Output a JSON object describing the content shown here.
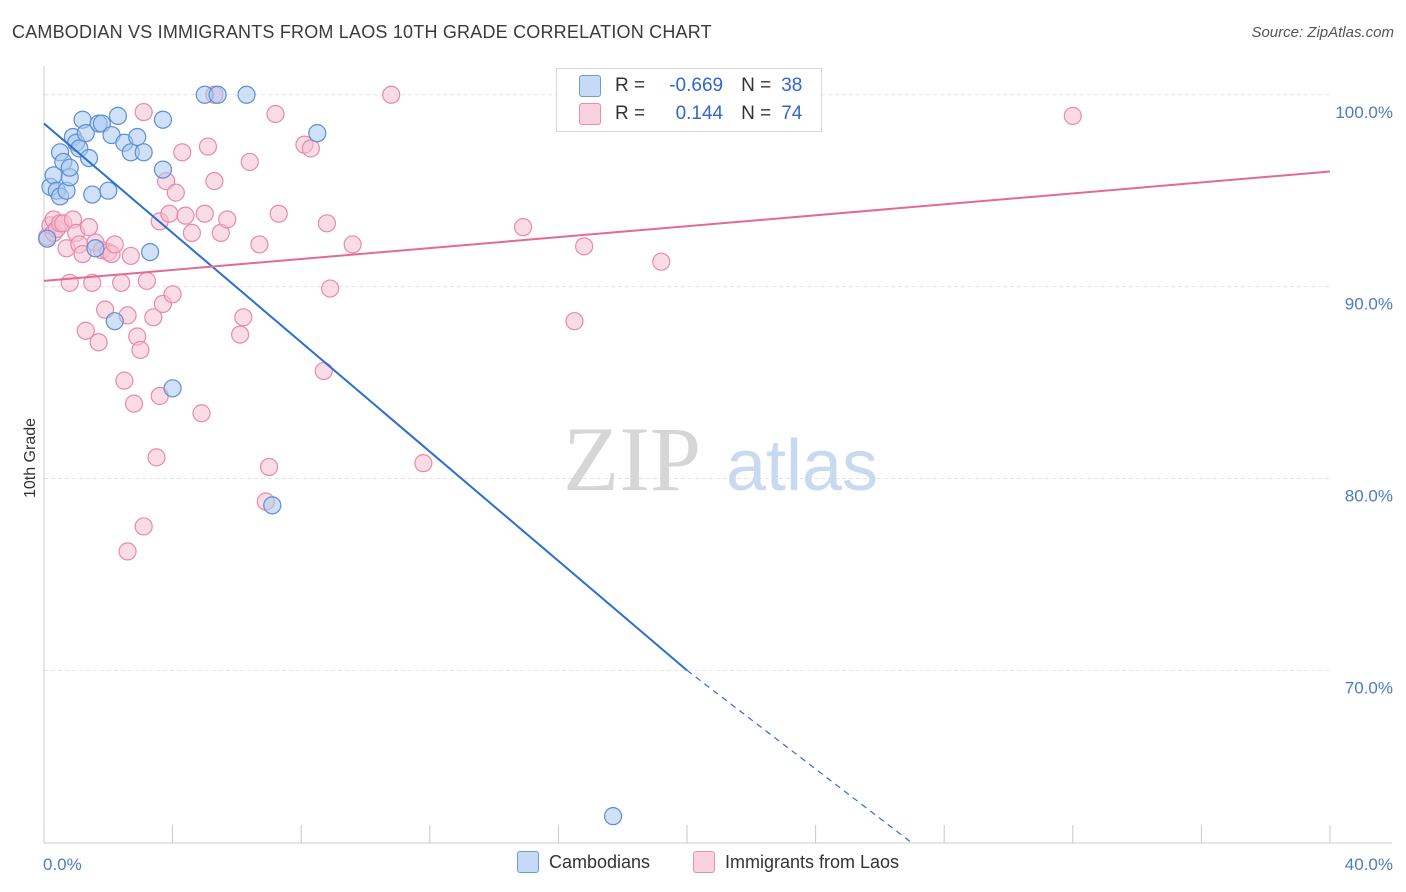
{
  "title": "CAMBODIAN VS IMMIGRANTS FROM LAOS 10TH GRADE CORRELATION CHART",
  "source": "Source: ZipAtlas.com",
  "watermark": {
    "zip": "ZIP",
    "atlas": "atlas"
  },
  "legend": {
    "rows": [
      {
        "r_label": "R =",
        "r_value": "-0.669",
        "n_label": "N =",
        "n_value": "38"
      },
      {
        "r_label": "R =",
        "r_value": "0.144",
        "n_label": "N =",
        "n_value": "74"
      }
    ]
  },
  "bottom_legend": {
    "a": "Cambodians",
    "b": "Immigrants from Laos"
  },
  "colors": {
    "blue_fill": "#aac8f0",
    "blue_stroke": "#5b8fd6",
    "blue_line": "#2a6fd1",
    "pink_fill": "#f6c0d2",
    "pink_stroke": "#e88aaa",
    "pink_line": "#e36a93",
    "grid": "#e2e2e2",
    "tick_text": "#4a7cc9"
  },
  "chart_data": {
    "type": "scatter",
    "title": "CAMBODIAN VS IMMIGRANTS FROM LAOS 10TH GRADE CORRELATION CHART",
    "xlabel": "",
    "ylabel": "10th Grade",
    "xlim": [
      0,
      40
    ],
    "ylim": [
      61.0,
      101.5
    ],
    "x_tick_labels": [
      {
        "value": 0,
        "label": "0.0%"
      },
      {
        "value": 40,
        "label": "40.0%"
      }
    ],
    "x_minor_ticks": [
      0,
      4,
      8,
      12,
      16,
      20,
      24,
      28,
      32,
      36,
      40
    ],
    "y_tick_labels": [
      {
        "value": 100,
        "label": "100.0%"
      },
      {
        "value": 90,
        "label": "90.0%"
      },
      {
        "value": 80,
        "label": "80.0%"
      },
      {
        "value": 70,
        "label": "70.0%"
      }
    ],
    "gridlines_y": [
      100,
      90,
      80,
      70
    ],
    "series": [
      {
        "name": "Cambodians",
        "R": -0.669,
        "N": 38,
        "trend": {
          "x0": 0,
          "y0": 98.5,
          "x1": 20,
          "y1": 70.0,
          "dash_to_x": 27,
          "dash_to_y": 61.0
        },
        "points": [
          [
            0.2,
            95.2
          ],
          [
            0.3,
            95.8
          ],
          [
            0.4,
            95.0
          ],
          [
            0.5,
            94.7
          ],
          [
            0.5,
            97.0
          ],
          [
            0.6,
            96.5
          ],
          [
            0.7,
            95.0
          ],
          [
            0.8,
            95.7
          ],
          [
            0.8,
            96.2
          ],
          [
            0.9,
            97.8
          ],
          [
            1.0,
            97.5
          ],
          [
            1.1,
            97.2
          ],
          [
            1.2,
            98.7
          ],
          [
            1.3,
            98.0
          ],
          [
            1.4,
            96.7
          ],
          [
            1.5,
            94.8
          ],
          [
            1.6,
            92.0
          ],
          [
            1.7,
            98.5
          ],
          [
            1.8,
            98.5
          ],
          [
            2.0,
            95.0
          ],
          [
            2.1,
            97.9
          ],
          [
            2.3,
            98.9
          ],
          [
            2.2,
            88.2
          ],
          [
            2.5,
            97.5
          ],
          [
            2.7,
            97.0
          ],
          [
            2.9,
            97.8
          ],
          [
            3.1,
            97.0
          ],
          [
            3.3,
            91.8
          ],
          [
            3.7,
            96.1
          ],
          [
            3.7,
            98.7
          ],
          [
            4.0,
            84.7
          ],
          [
            5.0,
            100.0
          ],
          [
            5.4,
            100.0
          ],
          [
            6.3,
            100.0
          ],
          [
            7.1,
            78.6
          ],
          [
            8.5,
            98.0
          ],
          [
            17.7,
            62.4
          ],
          [
            0.1,
            92.5
          ]
        ]
      },
      {
        "name": "Immigrants from Laos",
        "R": 0.144,
        "N": 74,
        "trend": {
          "x0": 0,
          "y0": 90.3,
          "x1": 40,
          "y1": 96.0
        },
        "points": [
          [
            0.1,
            92.6
          ],
          [
            0.2,
            93.2
          ],
          [
            0.3,
            93.5
          ],
          [
            0.3,
            92.8
          ],
          [
            0.4,
            93.0
          ],
          [
            0.5,
            93.3
          ],
          [
            0.6,
            93.3
          ],
          [
            0.7,
            92.0
          ],
          [
            0.8,
            90.2
          ],
          [
            0.9,
            93.5
          ],
          [
            1.0,
            92.8
          ],
          [
            1.1,
            92.2
          ],
          [
            1.2,
            91.7
          ],
          [
            1.3,
            87.7
          ],
          [
            1.4,
            93.1
          ],
          [
            1.5,
            90.2
          ],
          [
            1.6,
            92.3
          ],
          [
            1.7,
            87.1
          ],
          [
            1.8,
            91.9
          ],
          [
            1.9,
            88.8
          ],
          [
            2.0,
            91.8
          ],
          [
            2.1,
            91.7
          ],
          [
            2.2,
            92.2
          ],
          [
            2.4,
            90.2
          ],
          [
            2.5,
            85.1
          ],
          [
            2.6,
            88.5
          ],
          [
            2.7,
            91.6
          ],
          [
            2.8,
            83.9
          ],
          [
            2.9,
            87.4
          ],
          [
            3.0,
            86.7
          ],
          [
            3.1,
            77.5
          ],
          [
            3.2,
            90.3
          ],
          [
            3.4,
            88.4
          ],
          [
            3.5,
            81.1
          ],
          [
            3.6,
            84.3
          ],
          [
            3.6,
            93.4
          ],
          [
            3.7,
            89.1
          ],
          [
            3.8,
            95.5
          ],
          [
            3.9,
            93.8
          ],
          [
            4.0,
            89.6
          ],
          [
            4.1,
            94.9
          ],
          [
            4.3,
            97.0
          ],
          [
            4.4,
            93.7
          ],
          [
            4.6,
            92.8
          ],
          [
            4.9,
            83.4
          ],
          [
            5.0,
            93.8
          ],
          [
            5.1,
            97.3
          ],
          [
            5.3,
            95.5
          ],
          [
            5.5,
            92.8
          ],
          [
            5.7,
            93.5
          ],
          [
            6.1,
            87.5
          ],
          [
            6.2,
            88.4
          ],
          [
            6.4,
            96.5
          ],
          [
            6.7,
            92.2
          ],
          [
            6.9,
            78.8
          ],
          [
            7.0,
            80.6
          ],
          [
            7.2,
            99.0
          ],
          [
            7.3,
            93.8
          ],
          [
            8.1,
            97.4
          ],
          [
            8.3,
            97.2
          ],
          [
            8.7,
            85.6
          ],
          [
            8.8,
            93.3
          ],
          [
            8.9,
            89.9
          ],
          [
            9.6,
            92.2
          ],
          [
            10.8,
            100.0
          ],
          [
            11.8,
            80.8
          ],
          [
            14.9,
            93.1
          ],
          [
            16.5,
            88.2
          ],
          [
            16.8,
            92.1
          ],
          [
            19.2,
            91.3
          ],
          [
            32.0,
            98.9
          ],
          [
            2.6,
            76.2
          ],
          [
            3.1,
            99.1
          ],
          [
            5.3,
            100.0
          ]
        ]
      }
    ]
  }
}
